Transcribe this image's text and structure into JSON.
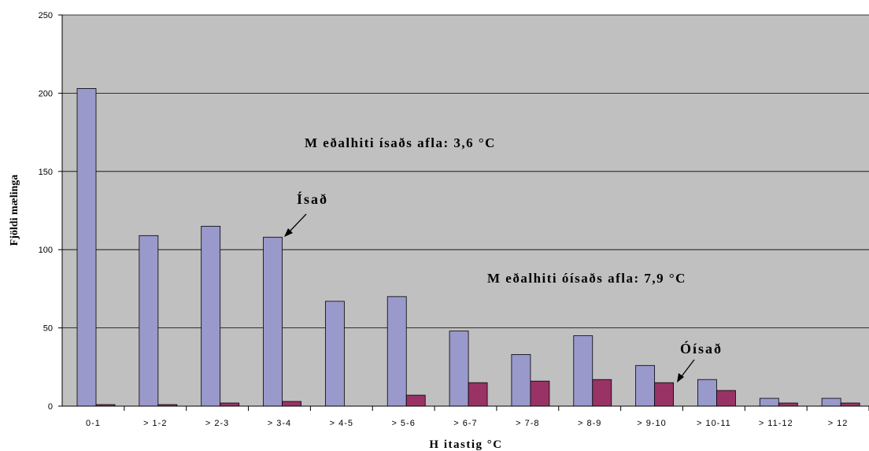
{
  "chart_data": {
    "type": "bar",
    "xlabel": "H itastig °C",
    "ylabel": "Fjöldi mælinga",
    "ylim": [
      0,
      250
    ],
    "yticks": [
      0,
      50,
      100,
      150,
      200,
      250
    ],
    "grid": true,
    "categories": [
      "0-1",
      "> 1-2",
      "> 2-3",
      "> 3-4",
      "> 4-5",
      "> 5-6",
      "> 6-7",
      "> 7-8",
      "> 8-9",
      "> 9-10",
      "> 10-11",
      "> 11-12",
      "> 12"
    ],
    "series": [
      {
        "name": "Ísað",
        "color": "#9999cc",
        "values": [
          203,
          109,
          115,
          108,
          67,
          70,
          48,
          33,
          45,
          26,
          17,
          5,
          5
        ]
      },
      {
        "name": "Óísað",
        "color": "#993366",
        "values": [
          1,
          1,
          2,
          3,
          0,
          7,
          15,
          16,
          17,
          15,
          10,
          2,
          2
        ]
      }
    ],
    "annotations": {
      "mean_iced": "M eðalhiti ísaðs afla: 3,6 °C",
      "mean_uniced": "M eðalhiti óísaðs afla: 7,9 °C",
      "iced_label": "Ísað",
      "uniced_label": "Óísað"
    },
    "plot_background": "#c0c0c0"
  }
}
